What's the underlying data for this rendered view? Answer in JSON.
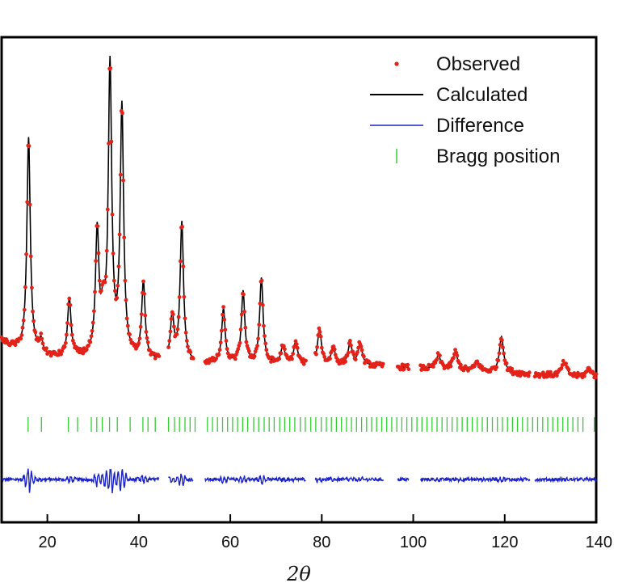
{
  "chart_data": {
    "type": "line",
    "title": "",
    "xlabel": "2θ",
    "ylabel": "",
    "xlim": [
      10,
      140
    ],
    "x_ticks": [
      20,
      40,
      60,
      80,
      100,
      120,
      140
    ],
    "y_ticks_shown": false,
    "grid": false,
    "legend_position": "top-right",
    "gaps": [
      [
        44.5,
        46.5
      ],
      [
        52,
        54.5
      ],
      [
        76.5,
        78.5
      ],
      [
        93.5,
        96.5
      ],
      [
        99,
        101.5
      ],
      [
        125.5,
        126.5
      ]
    ],
    "peaks": [
      {
        "x": 15.9,
        "height": 0.48,
        "width": 0.45
      },
      {
        "x": 18.6,
        "height": 0.03,
        "width": 0.5
      },
      {
        "x": 24.8,
        "height": 0.13,
        "width": 0.45
      },
      {
        "x": 30.9,
        "height": 0.27,
        "width": 0.45
      },
      {
        "x": 32.2,
        "height": 0.08,
        "width": 0.5
      },
      {
        "x": 33.7,
        "height": 0.64,
        "width": 0.45
      },
      {
        "x": 36.3,
        "height": 0.55,
        "width": 0.45
      },
      {
        "x": 41.0,
        "height": 0.17,
        "width": 0.45
      },
      {
        "x": 47.3,
        "height": 0.1,
        "width": 0.45
      },
      {
        "x": 49.4,
        "height": 0.31,
        "width": 0.45
      },
      {
        "x": 58.5,
        "height": 0.12,
        "width": 0.45
      },
      {
        "x": 62.8,
        "height": 0.16,
        "width": 0.45
      },
      {
        "x": 66.8,
        "height": 0.19,
        "width": 0.45
      },
      {
        "x": 71.5,
        "height": 0.04,
        "width": 0.5
      },
      {
        "x": 74.3,
        "height": 0.05,
        "width": 0.5
      },
      {
        "x": 79.5,
        "height": 0.08,
        "width": 0.5
      },
      {
        "x": 82.5,
        "height": 0.04,
        "width": 0.5
      },
      {
        "x": 86.2,
        "height": 0.05,
        "width": 0.5
      },
      {
        "x": 88.4,
        "height": 0.05,
        "width": 0.5
      },
      {
        "x": 105.5,
        "height": 0.03,
        "width": 0.6
      },
      {
        "x": 109.2,
        "height": 0.04,
        "width": 0.6
      },
      {
        "x": 114.0,
        "height": 0.02,
        "width": 0.6
      },
      {
        "x": 119.3,
        "height": 0.08,
        "width": 0.55
      },
      {
        "x": 133.0,
        "height": 0.03,
        "width": 0.7
      },
      {
        "x": 138.5,
        "height": 0.02,
        "width": 0.7
      }
    ],
    "bragg_positions": [
      15.8,
      18.7,
      24.6,
      26.6,
      29.6,
      30.8,
      32.0,
      33.6,
      35.3,
      38.1,
      40.9,
      42.0,
      43.6,
      46.5,
      47.8,
      48.9,
      50.1,
      51.2,
      52.3,
      55.0,
      56.1,
      57.2,
      58.3,
      59.4,
      60.5,
      61.6,
      62.7,
      63.8,
      65.1,
      66.2,
      67.4,
      68.5,
      69.6,
      70.8,
      71.9,
      73.0,
      74.1,
      75.3,
      76.4,
      77.6,
      78.7,
      79.9,
      81.0,
      82.1,
      83.2,
      84.3,
      85.4,
      86.5,
      87.6,
      88.7,
      89.8,
      90.9,
      92.0,
      93.1,
      94.2,
      95.3,
      96.4,
      97.5,
      98.6,
      99.7,
      100.8,
      101.9,
      103.0,
      104.1,
      105.2,
      106.3,
      107.4,
      108.5,
      109.6,
      110.7,
      111.8,
      112.9,
      114.0,
      115.1,
      116.2,
      117.3,
      118.4,
      119.5,
      120.6,
      121.7,
      122.8,
      123.9,
      125.0,
      126.1,
      127.2,
      128.3,
      129.4,
      130.5,
      131.6,
      132.7,
      133.8,
      134.9,
      136.0,
      137.1,
      139.6
    ],
    "series": [
      {
        "name": "Observed",
        "style": "red-dots",
        "color": "#e32219"
      },
      {
        "name": "Calculated",
        "style": "black-line",
        "color": "#000000"
      },
      {
        "name": "Difference",
        "style": "blue-line",
        "color": "#1a22c4"
      },
      {
        "name": "Bragg position",
        "style": "green-ticks",
        "color": "#33cc33"
      }
    ]
  }
}
